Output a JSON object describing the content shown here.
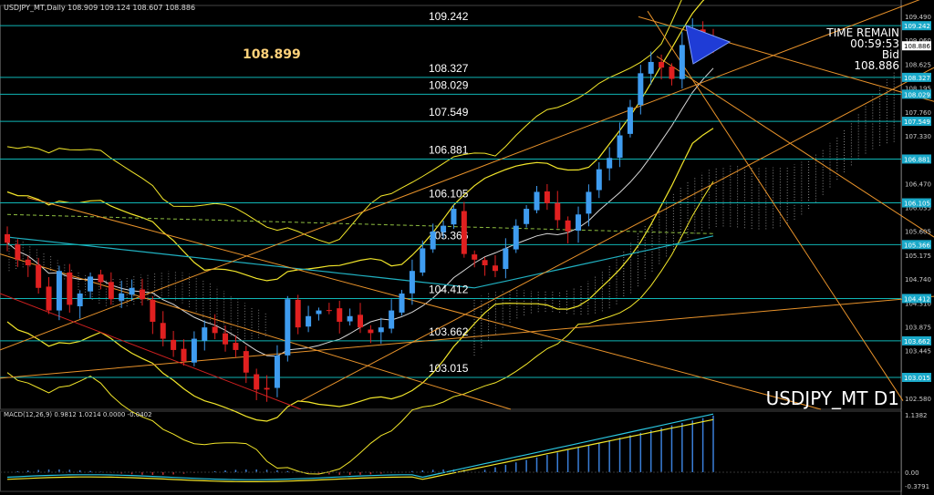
{
  "window": {
    "header": "USDJPY_MT,Daily  108.909 109.124 108.607 108.886"
  },
  "overlay": {
    "current_price_label": "108.899",
    "time_remain_label": "TIME REMAIN",
    "time_remain_value": "00:59:53",
    "bid_label": "Bid",
    "bid_value": "108.886",
    "symbol_label": "USDJPY_MT D1"
  },
  "levels": [
    {
      "price": "109.242",
      "label": "109.242"
    },
    {
      "price": "108.327",
      "label": "108.327"
    },
    {
      "price": "108.029",
      "label": "108.029"
    },
    {
      "price": "107.549",
      "label": "107.549"
    },
    {
      "price": "106.881",
      "label": "106.881"
    },
    {
      "price": "106.105",
      "label": "106.105"
    },
    {
      "price": "105.366",
      "label": "105.366"
    },
    {
      "price": "104.412",
      "label": "104.412"
    },
    {
      "price": "103.662",
      "label": "103.662"
    },
    {
      "price": "103.015",
      "label": "103.015"
    }
  ],
  "price_axis": {
    "ticks": [
      "109.490",
      "109.060",
      "108.625",
      "108.195",
      "107.760",
      "107.330",
      "106.900",
      "106.470",
      "106.035",
      "105.605",
      "105.175",
      "104.740",
      "104.310",
      "103.875",
      "103.445",
      "103.010",
      "102.580"
    ],
    "tags": [
      "109.242",
      "108.886",
      "108.327",
      "108.029",
      "107.549",
      "106.881",
      "106.105",
      "105.366",
      "104.412",
      "103.662",
      "103.015"
    ]
  },
  "macd": {
    "header": "MACD(12,26,9) 0.9812 1.0214 0.0000 -0.0402",
    "axis_ticks": [
      "1.1382",
      "0.00",
      "-0.3791"
    ]
  },
  "colors": {
    "background": "#000000",
    "bull_candle": "#3f9cf0",
    "bear_candle": "#e02020",
    "level_line": "#0fb5b5",
    "bollinger": "#f2e62a",
    "trendline": "#e8922a",
    "axis_tag": "#1aa9c9"
  }
}
